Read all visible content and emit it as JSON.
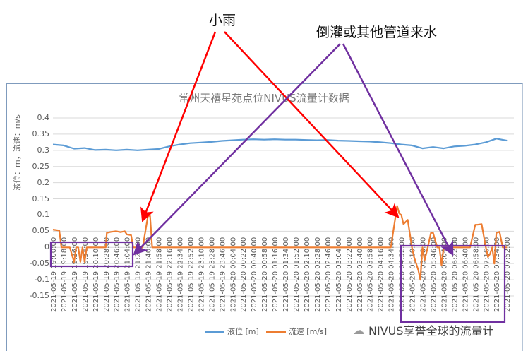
{
  "annotations": {
    "rain": "小雨",
    "backflow": "倒灌或其他管道来水"
  },
  "chart": {
    "title": "常州天禧星苑点位NIVUS流量计数据",
    "ylabel": "液位：m，流速：m/s",
    "legend": [
      {
        "label": "液位 [m]",
        "color": "#5b9bd5"
      },
      {
        "label": "流速 [m/s]",
        "color": "#ed7d31"
      }
    ]
  },
  "watermark": "NIVUS享誉全球的流量计",
  "chart_data": {
    "type": "line",
    "title": "常州天禧星苑点位NIVUS流量计数据",
    "xlabel": "",
    "ylabel": "液位：m，流速：m/s",
    "ylim": [
      -0.15,
      0.4
    ],
    "yticks": [
      0.4,
      0.35,
      0.3,
      0.25,
      0.2,
      0.15,
      0.1,
      0.05,
      0,
      -0.05,
      -0.1,
      -0.15
    ],
    "grid": true,
    "legend_position": "bottom",
    "x_tick_labels": [
      "2021-05-19 19:00:00",
      "2021-05-19 19:18:00",
      "2021-05-19 19:36:00",
      "2021-05-19 19:54:00",
      "2021-05-19 20:10:00",
      "2021-05-19 20:28:00",
      "2021-05-19 20:46:00",
      "2021-05-19 21:04:00",
      "2021-05-19 21:22:00",
      "2021-05-19 21:40:00",
      "2021-05-19 21:58:00",
      "2021-05-19 22:16:00",
      "2021-05-19 22:34:00",
      "2021-05-19 22:52:00",
      "2021-05-19 23:10:00",
      "2021-05-19 23:28:00",
      "2021-05-19 23:46:00",
      "2021-05-20 00:04:00",
      "2021-05-20 00:22:00",
      "2021-05-20 00:40:00",
      "2021-05-20 00:58:00",
      "2021-05-20 01:16:00",
      "2021-05-20 01:34:00",
      "2021-05-20 01:52:00",
      "2021-05-20 02:10:00",
      "2021-05-20 02:28:00",
      "2021-05-20 02:46:00",
      "2021-05-20 03:04:00",
      "2021-05-20 03:22:00",
      "2021-05-20 03:40:00",
      "2021-05-20 03:58:00",
      "2021-05-20 04:16:00",
      "2021-05-20 04:34:00",
      "2021-05-20 04:52:00",
      "2021-05-20 05:10:00",
      "2021-05-20 05:28:00",
      "2021-05-20 05:46:00",
      "2021-05-20 06:04:00",
      "2021-05-20 06:22:00",
      "2021-05-20 06:40:00",
      "2021-05-20 06:58:00",
      "2021-05-20 07:16:00",
      "2021-05-20 07:34:00",
      "2021-05-20 07:52:00"
    ],
    "series": [
      {
        "name": "液位 [m]",
        "color": "#5b9bd5",
        "x_index": [
          0,
          1,
          2,
          3,
          4,
          5,
          6,
          7,
          8,
          9,
          10,
          11,
          12,
          13,
          14,
          15,
          16,
          17,
          18,
          19,
          20,
          21,
          22,
          23,
          24,
          25,
          26,
          27,
          28,
          29,
          30,
          31,
          32,
          33,
          34,
          35,
          36,
          37,
          38,
          39,
          40,
          41,
          42,
          43
        ],
        "values": [
          0.318,
          0.315,
          0.305,
          0.307,
          0.301,
          0.302,
          0.3,
          0.302,
          0.3,
          0.302,
          0.304,
          0.312,
          0.318,
          0.322,
          0.324,
          0.326,
          0.329,
          0.331,
          0.333,
          0.334,
          0.333,
          0.334,
          0.333,
          0.333,
          0.332,
          0.331,
          0.332,
          0.33,
          0.329,
          0.328,
          0.327,
          0.325,
          0.322,
          0.318,
          0.315,
          0.306,
          0.31,
          0.306,
          0.312,
          0.314,
          0.318,
          0.325,
          0.336,
          0.33
        ]
      },
      {
        "name": "流速 [m/s]",
        "color": "#ed7d31",
        "x_index": [
          0,
          0.6,
          0.8,
          1,
          1.6,
          2,
          2.2,
          2.4,
          2.6,
          2.8,
          3,
          3.2,
          3.4,
          3.6,
          4,
          5,
          5.1,
          5.5,
          6,
          6.4,
          6.8,
          7,
          7.4,
          7.6,
          7.8,
          8,
          8.5,
          9,
          9.2,
          9.4,
          9.6,
          9.8,
          10,
          11,
          20,
          30,
          32,
          32.6,
          32.8,
          33,
          33.2,
          33.6,
          34,
          34.2,
          34.4,
          34.6,
          34.8,
          35,
          35.2,
          35.5,
          35.8,
          36,
          36.4,
          36.6,
          36.8,
          37,
          37.2,
          37.4,
          37.6,
          38,
          38.5,
          39,
          39.5,
          40,
          40.2,
          40.6,
          41,
          41.2,
          41.4,
          41.6,
          41.8,
          42,
          42.3,
          42.6,
          43
        ],
        "values": [
          0.055,
          0.052,
          0.0,
          0.0,
          0.0,
          -0.045,
          0.0,
          0.0,
          -0.045,
          0.0,
          -0.045,
          0.0,
          0.0,
          0.0,
          0.0,
          0.0,
          0.045,
          0.048,
          0.05,
          0.047,
          0.05,
          0.04,
          0.038,
          0.0,
          0.0,
          0.0,
          0.0,
          0.097,
          0.097,
          0.0,
          0.0,
          0.0,
          0.0,
          0.0,
          0.0,
          0.0,
          0.0,
          0.128,
          0.105,
          0.1,
          0.072,
          0.085,
          0.0,
          -0.03,
          -0.05,
          -0.07,
          -0.1,
          0.0,
          -0.04,
          0.0,
          0.045,
          0.045,
          0.0,
          0.0,
          -0.055,
          0.0,
          0.0,
          0.0,
          0.0,
          0.0,
          0.0,
          0.0,
          0.0,
          0.07,
          0.07,
          0.072,
          0.0,
          -0.03,
          -0.02,
          0.0,
          -0.05,
          0.045,
          0.048,
          0.0,
          0.0
        ]
      }
    ],
    "annotations": [
      {
        "text": "小雨",
        "color": "#ff0000",
        "targets": [
          "~2021-05-19 21:40 velocity peak 0.097",
          "~2021-05-20 04:52 velocity peak 0.128"
        ]
      },
      {
        "text": "倒灌或其他管道来水",
        "color": "#7030a0",
        "targets": [
          "box 19:00–21:04 negative velocities",
          "box 04:52–07:52 negative velocities"
        ]
      }
    ]
  }
}
